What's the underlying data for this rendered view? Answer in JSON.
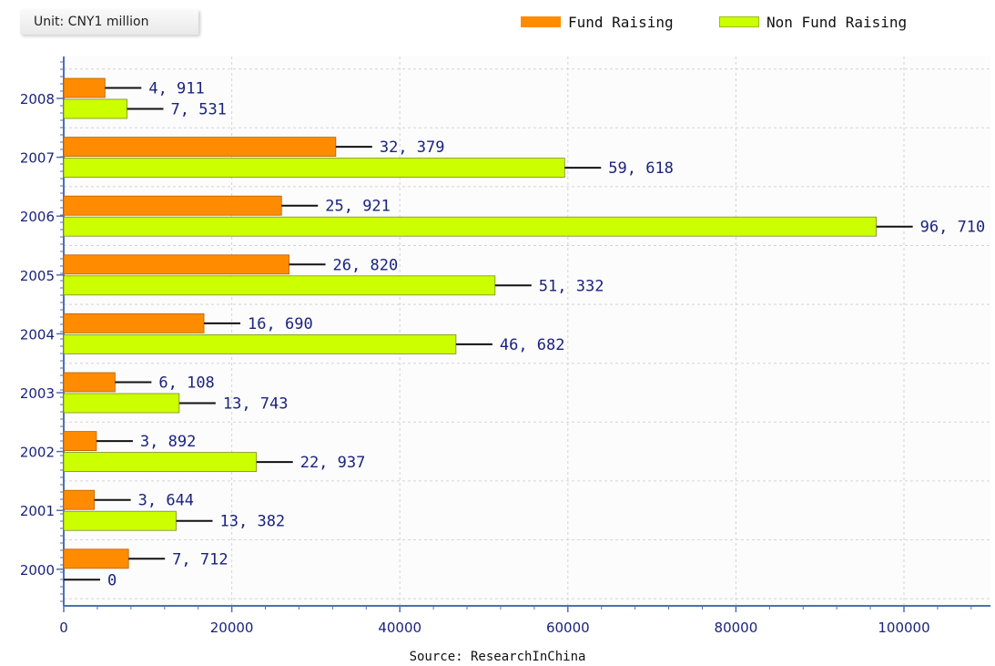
{
  "unit_label": "Unit: CNY1 million",
  "source_label": "Source: ResearchInChina",
  "chart_data": {
    "type": "bar",
    "orientation": "horizontal",
    "categories": [
      "2008",
      "2007",
      "2006",
      "2005",
      "2004",
      "2003",
      "2002",
      "2001",
      "2000"
    ],
    "series": [
      {
        "name": "Fund Raising",
        "color": "#ff8c00",
        "values": [
          4911,
          32379,
          25921,
          26820,
          16690,
          6108,
          3892,
          3644,
          7712
        ],
        "labels": [
          "4, 911",
          "32, 379",
          "25, 921",
          "26, 820",
          "16, 690",
          "6, 108",
          "3, 892",
          "3, 644",
          "7, 712"
        ]
      },
      {
        "name": "Non Fund Raising",
        "color": "#ccff00",
        "values": [
          7531,
          59618,
          96710,
          51332,
          46682,
          13743,
          22937,
          13382,
          0
        ],
        "labels": [
          "7, 531",
          "59, 618",
          "96, 710",
          "51, 332",
          "46, 682",
          "13, 743",
          "22, 937",
          "13, 382",
          "0"
        ]
      }
    ],
    "x_ticks": [
      "0",
      "20000",
      "40000",
      "60000",
      "80000",
      "100000"
    ],
    "xlim": [
      0,
      110000
    ],
    "grid": true,
    "legend_position": "top-right"
  }
}
